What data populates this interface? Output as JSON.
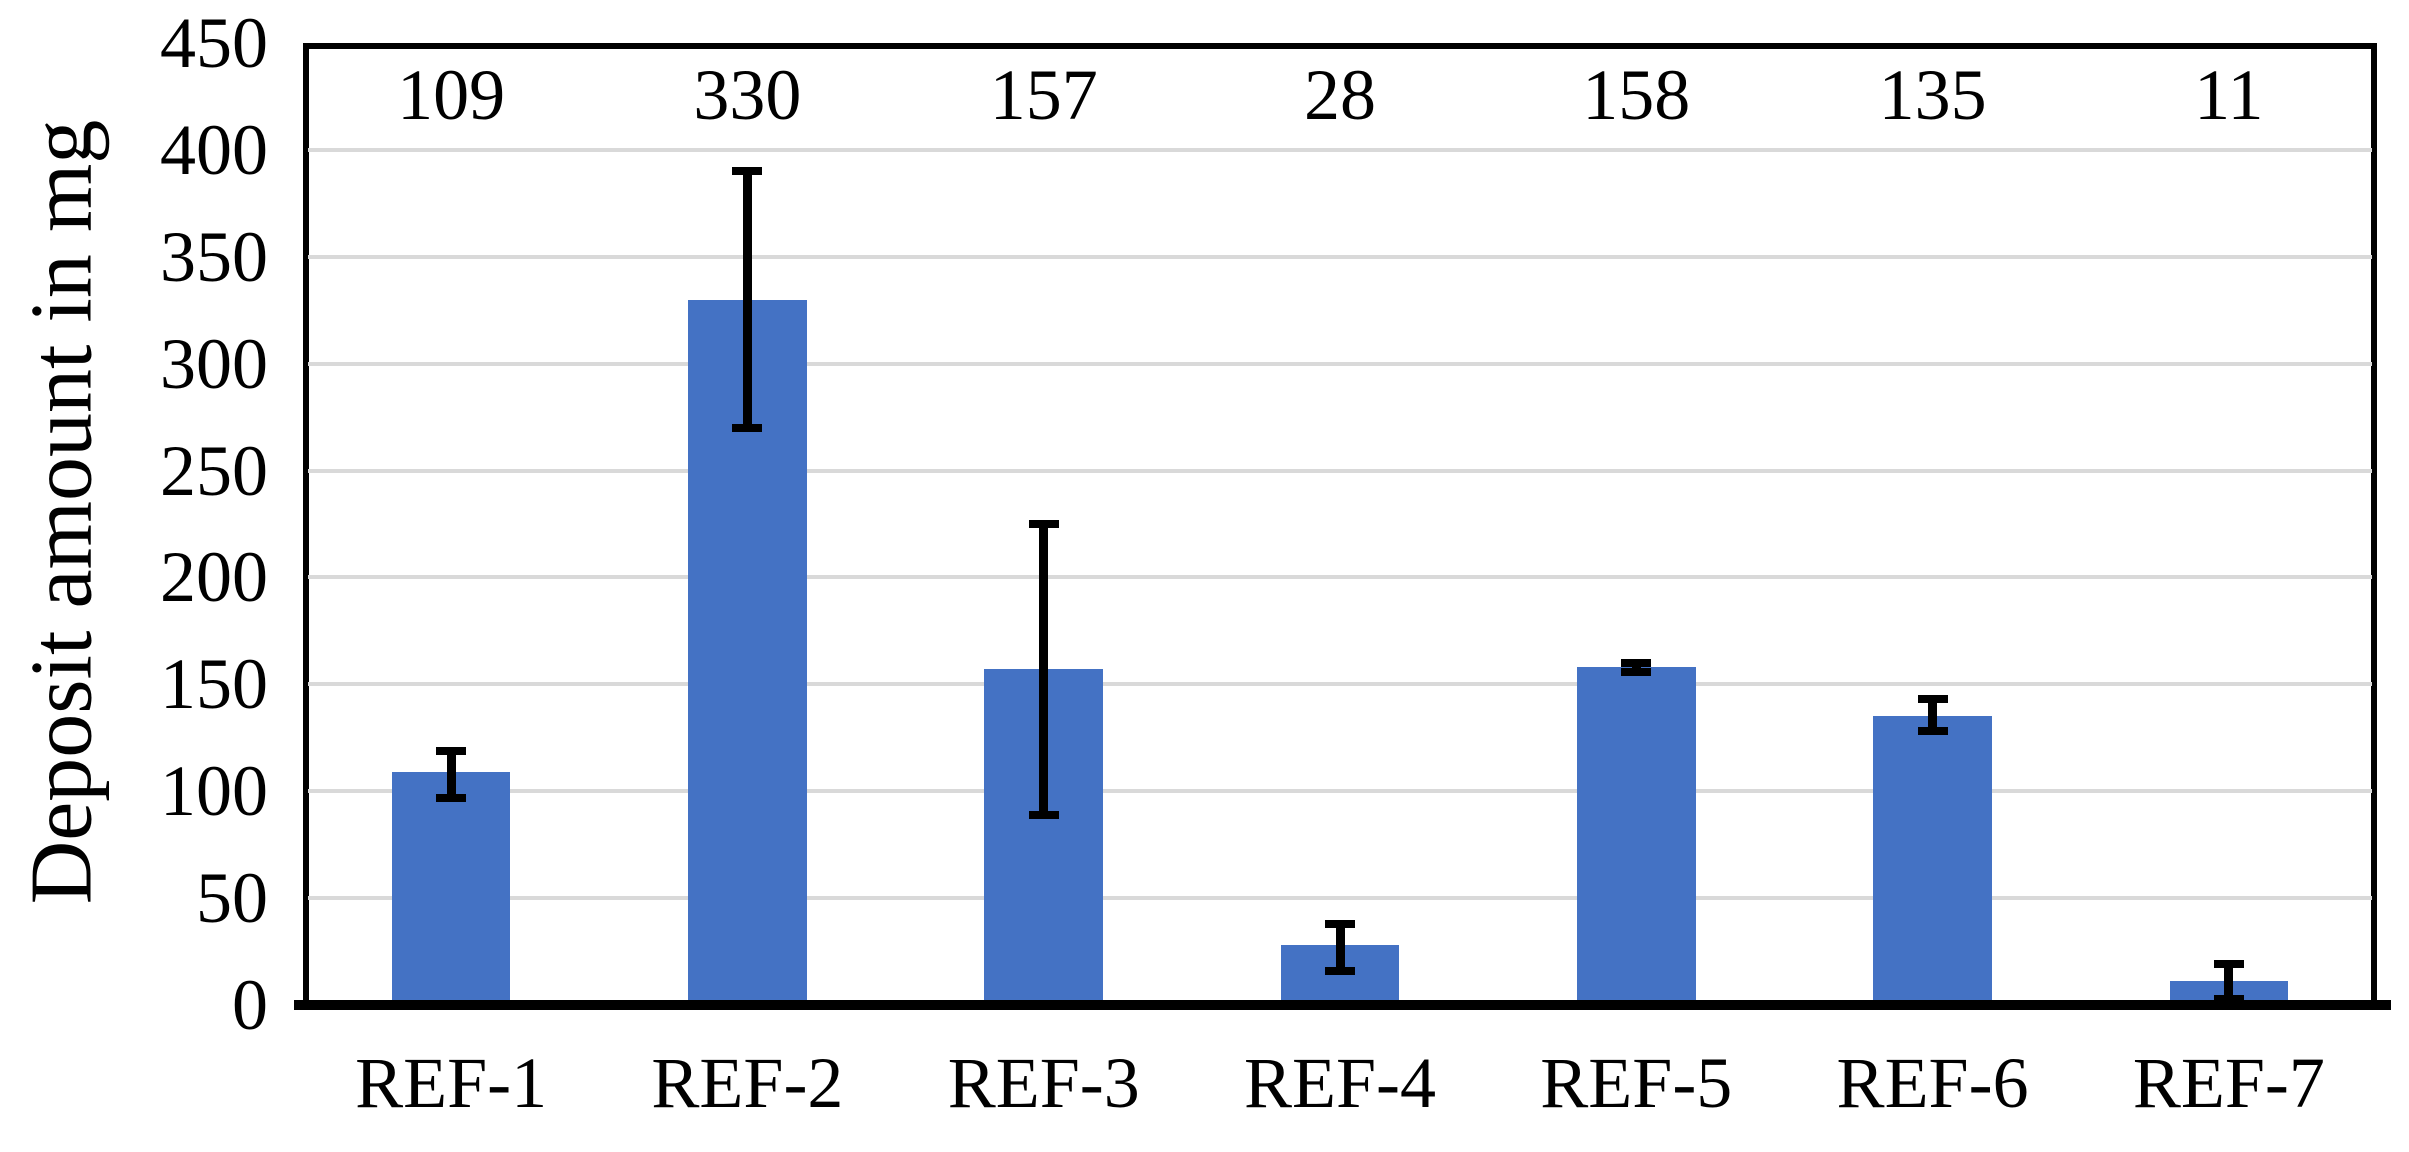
{
  "chart_data": {
    "type": "bar",
    "title": "",
    "xlabel": "",
    "ylabel": "Deposit amount in mg",
    "categories": [
      "REF-1",
      "REF-2",
      "REF-3",
      "REF-4",
      "REF-5",
      "REF-6",
      "REF-7"
    ],
    "values": [
      109,
      330,
      157,
      28,
      158,
      135,
      11
    ],
    "data_labels": [
      "109",
      "330",
      "157",
      "28",
      "158",
      "135",
      "11"
    ],
    "error_bars": [
      {
        "low": 97,
        "high": 119
      },
      {
        "low": 270,
        "high": 390
      },
      {
        "low": 89,
        "high": 225
      },
      {
        "low": 16,
        "high": 38
      },
      {
        "low": 156,
        "high": 160
      },
      {
        "low": 128,
        "high": 143
      },
      {
        "low": 3,
        "high": 19
      }
    ],
    "ylim": [
      0,
      450
    ],
    "ytick_interval": 50,
    "yticks": [
      "0",
      "50",
      "100",
      "150",
      "200",
      "250",
      "300",
      "350",
      "400",
      "450"
    ],
    "grid": true,
    "legend_position": "none",
    "bar_color": "#4472C4",
    "gridline_color": "#D9D9D9",
    "axis_color": "#000000",
    "label_color": "#000000"
  }
}
